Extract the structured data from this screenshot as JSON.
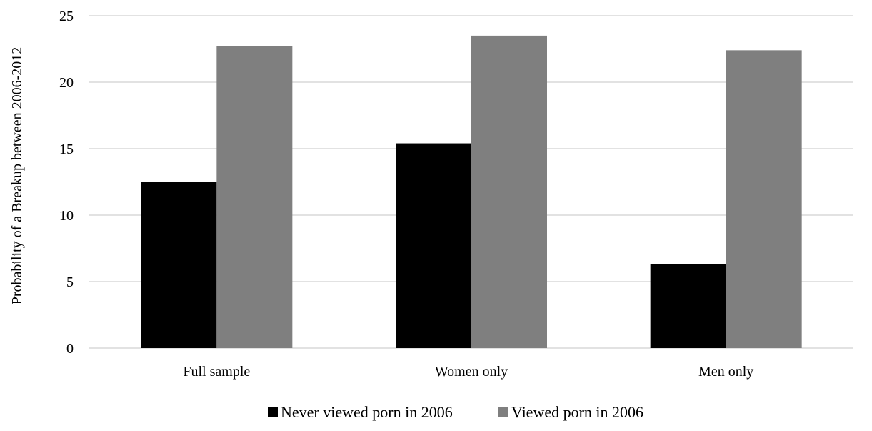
{
  "chart_data": {
    "type": "bar",
    "title": "",
    "xlabel": "",
    "ylabel": "Probability of a Breakup between 2006-2012",
    "ylim": [
      0,
      25
    ],
    "yticks": [
      0,
      5,
      10,
      15,
      20,
      25
    ],
    "grid": true,
    "legend_position": "bottom",
    "categories": [
      "Full sample",
      "Women only",
      "Men only"
    ],
    "series": [
      {
        "name": "Never viewed porn in 2006",
        "color": "#000000",
        "values": [
          12.5,
          15.4,
          6.3
        ]
      },
      {
        "name": "Viewed porn in 2006",
        "color": "#7f7f7f",
        "values": [
          22.7,
          23.5,
          22.4
        ]
      }
    ]
  }
}
